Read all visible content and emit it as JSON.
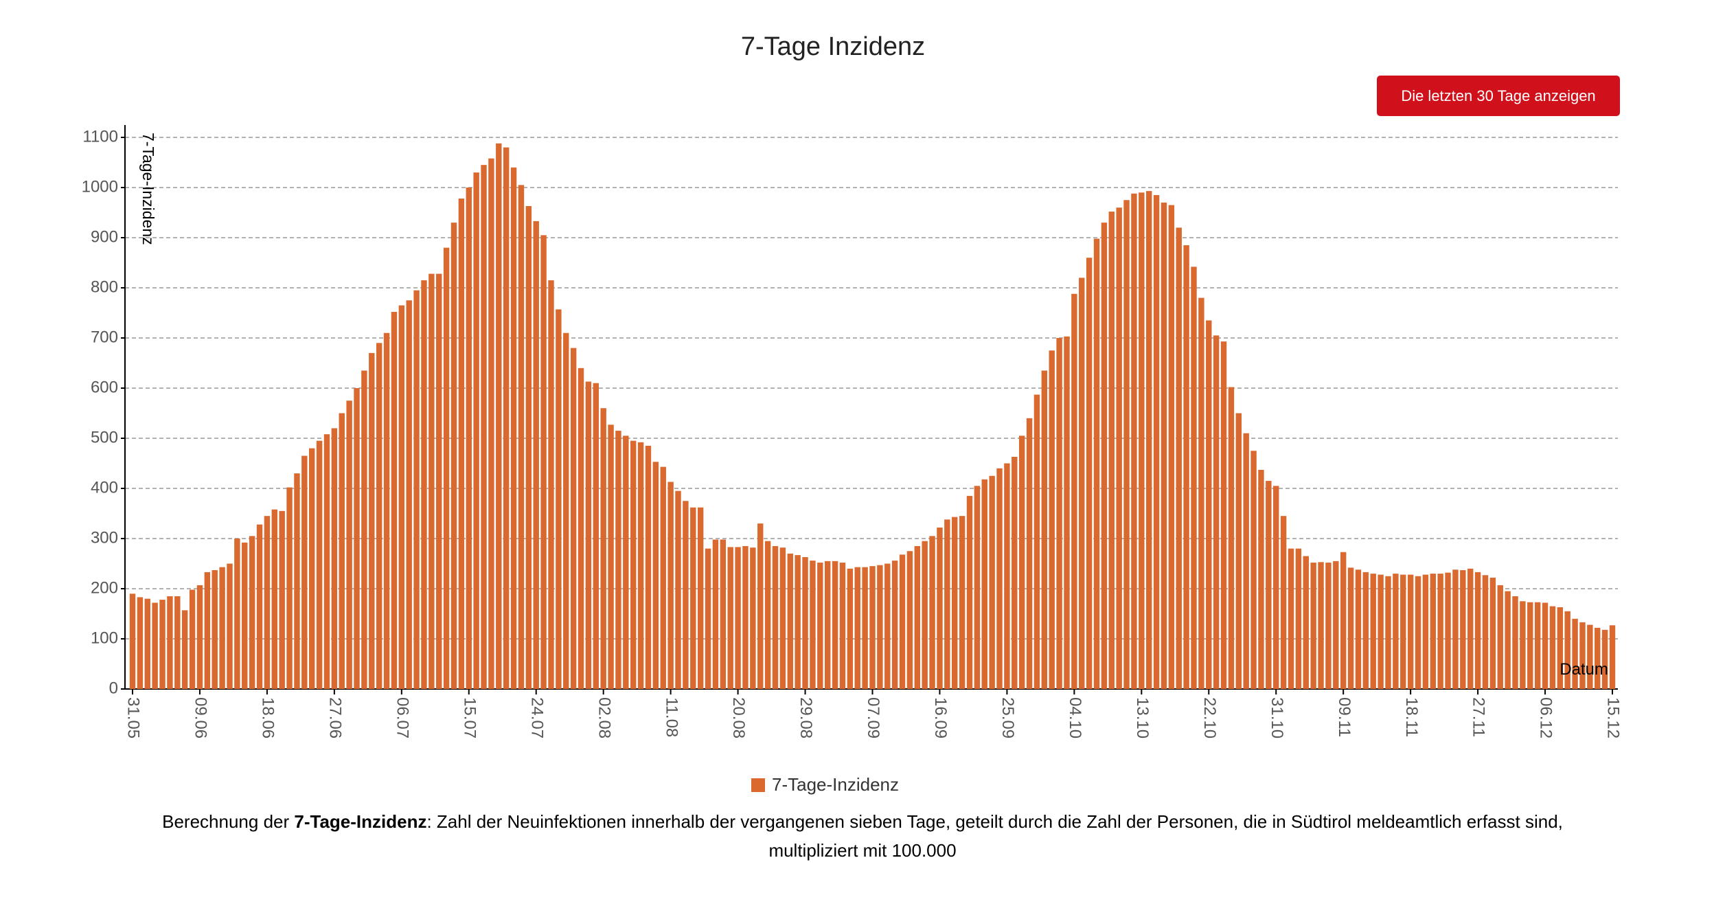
{
  "chart_data": {
    "type": "bar",
    "title": "7-Tage Inzidenz",
    "button": "Die letzten 30 Tage anzeigen",
    "y_label": "7-Tage-Inzidenz",
    "x_label": "Datum",
    "series": [
      {
        "name": "7-Tage-Inzidenz",
        "color": "#d9692e",
        "values": [
          190,
          183,
          180,
          172,
          178,
          185,
          185,
          157,
          198,
          207,
          233,
          237,
          243,
          250,
          300,
          292,
          305,
          328,
          345,
          358,
          355,
          402,
          430,
          465,
          480,
          495,
          508,
          520,
          550,
          575,
          600,
          635,
          670,
          690,
          710,
          752,
          765,
          775,
          795,
          815,
          828,
          828,
          880,
          930,
          978,
          1000,
          1030,
          1045,
          1058,
          1088,
          1080,
          1040,
          1005,
          963,
          933,
          905,
          815,
          757,
          710,
          680,
          640,
          613,
          610,
          560,
          527,
          515,
          505,
          495,
          492,
          485,
          453,
          443,
          413,
          395,
          375,
          362,
          362,
          280,
          298,
          298,
          283,
          283,
          285,
          282,
          330,
          295,
          285,
          282,
          270,
          267,
          263,
          256,
          252,
          255,
          255,
          252,
          240,
          243,
          243,
          245,
          247,
          250,
          256,
          268,
          275,
          285,
          295,
          305,
          322,
          338,
          343,
          345,
          385,
          405,
          418,
          425,
          440,
          450,
          463,
          505,
          540,
          587,
          635,
          675,
          700,
          703,
          788,
          820,
          860,
          898,
          930,
          952,
          960,
          975,
          988,
          990,
          993,
          985,
          970,
          965,
          920,
          885,
          842,
          780,
          735,
          705,
          693,
          602,
          550,
          510,
          475,
          437,
          415,
          405,
          345,
          280,
          280,
          265,
          252,
          253,
          252,
          255,
          273,
          242,
          238,
          233,
          230,
          228,
          225,
          230,
          228,
          228,
          225,
          228,
          230,
          230,
          232,
          238,
          237,
          240,
          233,
          227,
          222,
          207,
          195,
          185,
          175,
          173,
          173,
          172,
          165,
          163,
          155,
          140,
          133,
          128,
          122,
          118,
          127
        ]
      }
    ],
    "categories": [
      "31.05",
      null,
      null,
      null,
      null,
      null,
      null,
      null,
      null,
      "09.06",
      null,
      null,
      null,
      null,
      null,
      null,
      null,
      null,
      "18.06",
      null,
      null,
      null,
      null,
      null,
      null,
      null,
      null,
      "27.06",
      null,
      null,
      null,
      null,
      null,
      null,
      null,
      null,
      "06.07",
      null,
      null,
      null,
      null,
      null,
      null,
      null,
      null,
      "15.07",
      null,
      null,
      null,
      null,
      null,
      null,
      null,
      null,
      "24.07",
      null,
      null,
      null,
      null,
      null,
      null,
      null,
      null,
      "02.08",
      null,
      null,
      null,
      null,
      null,
      null,
      null,
      null,
      "11.08",
      null,
      null,
      null,
      null,
      null,
      null,
      null,
      null,
      "20.08",
      null,
      null,
      null,
      null,
      null,
      null,
      null,
      null,
      "29.08",
      null,
      null,
      null,
      null,
      null,
      null,
      null,
      null,
      "07.09",
      null,
      null,
      null,
      null,
      null,
      null,
      null,
      null,
      "16.09",
      null,
      null,
      null,
      null,
      null,
      null,
      null,
      null,
      "25.09",
      null,
      null,
      null,
      null,
      null,
      null,
      null,
      null,
      "04.10",
      null,
      null,
      null,
      null,
      null,
      null,
      null,
      null,
      "13.10",
      null,
      null,
      null,
      null,
      null,
      null,
      null,
      null,
      "22.10",
      null,
      null,
      null,
      null,
      null,
      null,
      null,
      null,
      "31.10",
      null,
      null,
      null,
      null,
      null,
      null,
      null,
      null,
      "09.11",
      null,
      null,
      null,
      null,
      null,
      null,
      null,
      null,
      "18.11",
      null,
      null,
      null,
      null,
      null,
      null,
      null,
      null,
      "27.11",
      null,
      null,
      null,
      null,
      null,
      null,
      null,
      null,
      "06.12",
      null,
      null,
      null,
      null,
      null,
      null,
      null,
      null,
      "15.12"
    ],
    "ylim": [
      0,
      1100
    ],
    "yticks": [
      0,
      100,
      200,
      300,
      400,
      500,
      600,
      700,
      800,
      900,
      1000,
      1100
    ],
    "grid": true,
    "footnote": {
      "before": "Berechnung der ",
      "bold": "7-Tage-Inzidenz",
      "after": ": Zahl der Neuinfektionen innerhalb der vergangenen sieben Tage, geteilt durch die Zahl der Personen, die in Südtirol meldeamtlich erfasst sind,",
      "line2": "multipliziert mit 100.000"
    }
  }
}
